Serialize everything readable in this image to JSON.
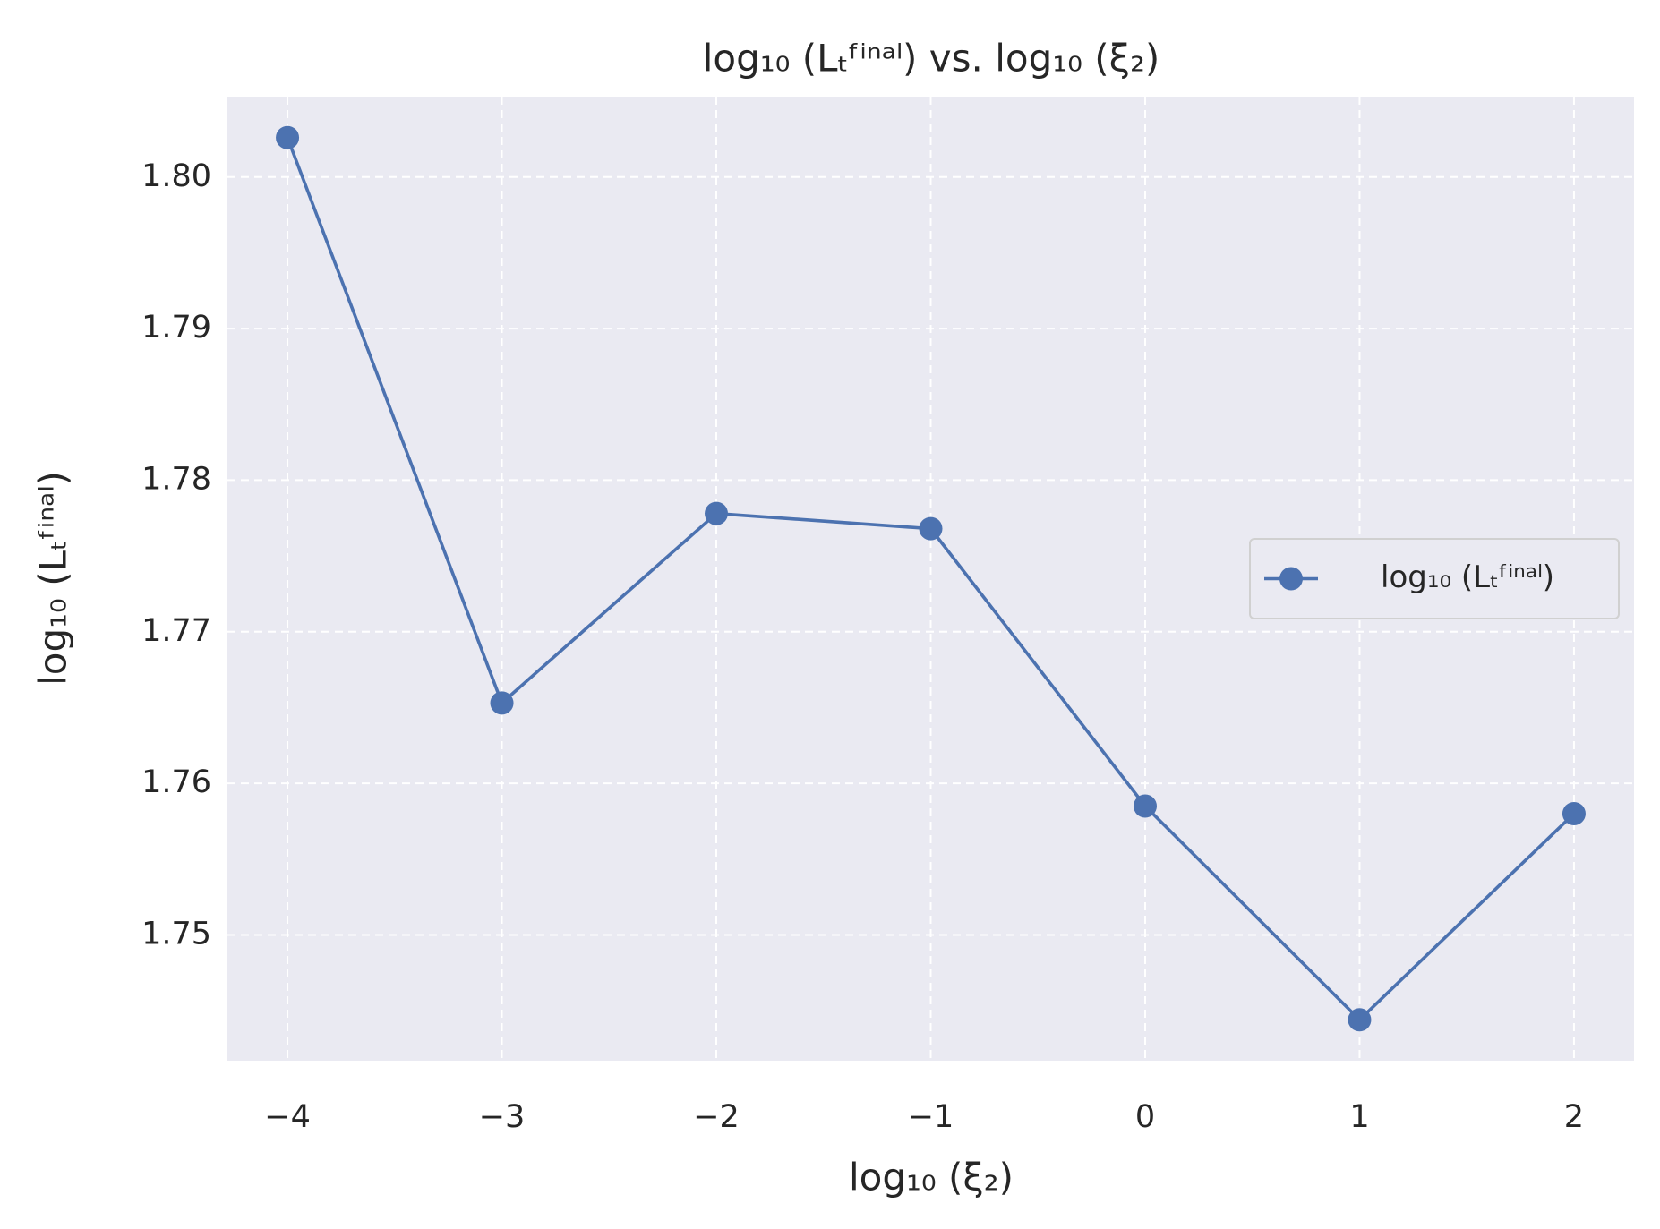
{
  "chart_data": {
    "type": "line",
    "title": "log₁₀ (Lₜᶠⁱⁿᵃˡ) vs. log₁₀ (ξ₂)",
    "x_label": "log₁₀ (ξ₂)",
    "y_label": "log₁₀ (Lₜᶠⁱⁿᵃˡ)",
    "x": [
      -4,
      -3,
      -2,
      -1,
      0,
      1,
      2
    ],
    "series": [
      {
        "name": "log₁₀ (Lₜᶠⁱⁿᵃˡ)",
        "color": "#4c72b0",
        "values": [
          1.8026,
          1.7653,
          1.7778,
          1.7768,
          1.7585,
          1.7444,
          1.758
        ]
      }
    ],
    "xlim": [
      -4.28,
      2.28
    ],
    "ylim": [
      1.7417,
      1.8053
    ],
    "xticks": [
      {
        "value": -4,
        "label": "−4"
      },
      {
        "value": -3,
        "label": "−3"
      },
      {
        "value": -2,
        "label": "−2"
      },
      {
        "value": -1,
        "label": "−1"
      },
      0,
      1,
      2
    ],
    "yticks": [
      1.75,
      1.76,
      1.77,
      1.78,
      1.79,
      {
        "value": 1.8,
        "label": "1.80"
      }
    ],
    "grid": true,
    "legend": "center right"
  }
}
